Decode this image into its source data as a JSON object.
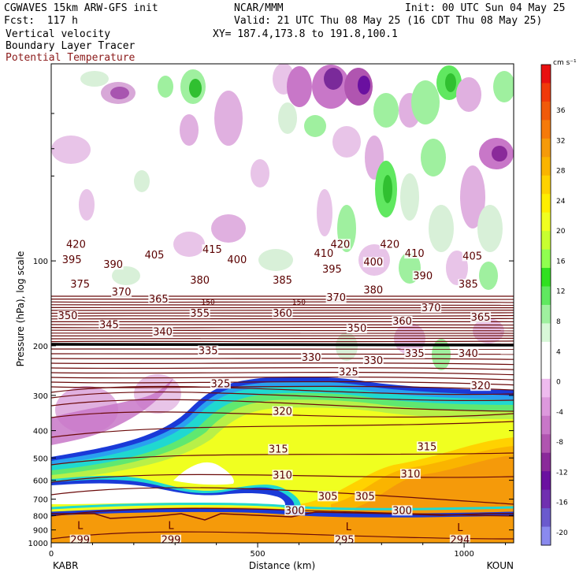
{
  "header": {
    "model": "CGWAVES 15km ARW-GFS init",
    "org": "NCAR/MMM",
    "init": "Init: 00 UTC Sun 04 May 25",
    "fcst": "Fcst:  117 h",
    "valid": "Valid: 21 UTC Thu 08 May 25 (16 CDT Thu 08 May 25)",
    "xy": "XY= 187.4,173.8 to 191.8,100.1",
    "field1": "Vertical velocity",
    "field2": "Boundary Layer Tracer",
    "field3": "Potential Temperature"
  },
  "colors": {
    "theta": "#6b0a0a",
    "theta_text": "#8b1a1a"
  },
  "chart_data": {
    "type": "heatmap",
    "title": "",
    "xlabel": "Distance (km)",
    "ylabel": "Pressure (hPa), log scale",
    "xlim": [
      0,
      1120
    ],
    "ylim": [
      1000,
      20
    ],
    "yscale": "log",
    "x_ticks": [
      0,
      500,
      1000
    ],
    "y_ticks": [
      100,
      200,
      300,
      400,
      500,
      600,
      700,
      800,
      900,
      1000
    ],
    "y_tick_labels": [
      "100",
      "200",
      "300",
      "400",
      "500",
      "600",
      "700",
      "800",
      "900",
      "1000"
    ],
    "endpoints": {
      "left": "KABR",
      "right": "KOUN"
    },
    "colorbar": {
      "unit": "cm s⁻¹",
      "labels": [
        36,
        32,
        28,
        24,
        20,
        16,
        12,
        8,
        4,
        0,
        -4,
        -8,
        -12,
        -16,
        -20
      ],
      "colors": [
        "#e81010",
        "#f03a0a",
        "#f05a0a",
        "#f57a0a",
        "#f59a0a",
        "#fab400",
        "#ffd200",
        "#ffee00",
        "#f0ff20",
        "#c8ff30",
        "#90ff50",
        "#30e020",
        "#60e860",
        "#9ff09f",
        "#d8f8d8",
        "#ffffff",
        "#ffffff",
        "#eebbee",
        "#dd99dd",
        "#c877c8",
        "#b055b0",
        "#8a2a9a",
        "#6a10a0",
        "#7030b0",
        "#6a5acd",
        "#8a8aee"
      ]
    },
    "theta_labels": [
      {
        "x": 60,
        "p": 88,
        "value": "420"
      },
      {
        "x": 50,
        "p": 100,
        "value": "395"
      },
      {
        "x": 150,
        "p": 104,
        "value": "390"
      },
      {
        "x": 250,
        "p": 96,
        "value": "405"
      },
      {
        "x": 390,
        "p": 92,
        "value": "415"
      },
      {
        "x": 450,
        "p": 100,
        "value": "400"
      },
      {
        "x": 700,
        "p": 88,
        "value": "420"
      },
      {
        "x": 820,
        "p": 88,
        "value": "420"
      },
      {
        "x": 660,
        "p": 95,
        "value": "410"
      },
      {
        "x": 880,
        "p": 95,
        "value": "410"
      },
      {
        "x": 1020,
        "p": 97,
        "value": "405"
      },
      {
        "x": 780,
        "p": 102,
        "value": "400"
      },
      {
        "x": 680,
        "p": 108,
        "value": "395"
      },
      {
        "x": 900,
        "p": 114,
        "value": "390"
      },
      {
        "x": 1010,
        "p": 122,
        "value": "385"
      },
      {
        "x": 560,
        "p": 118,
        "value": "385"
      },
      {
        "x": 360,
        "p": 118,
        "value": "380"
      },
      {
        "x": 780,
        "p": 128,
        "value": "380"
      },
      {
        "x": 70,
        "p": 122,
        "value": "375"
      },
      {
        "x": 170,
        "p": 130,
        "value": "370"
      },
      {
        "x": 690,
        "p": 136,
        "value": "370"
      },
      {
        "x": 920,
        "p": 148,
        "value": "370"
      },
      {
        "x": 260,
        "p": 138,
        "value": "365"
      },
      {
        "x": 1040,
        "p": 160,
        "value": "365"
      },
      {
        "x": 360,
        "p": 155,
        "value": "355"
      },
      {
        "x": 560,
        "p": 155,
        "value": "360"
      },
      {
        "x": 850,
        "p": 165,
        "value": "360"
      },
      {
        "x": 40,
        "p": 158,
        "value": "350"
      },
      {
        "x": 740,
        "p": 175,
        "value": "350"
      },
      {
        "x": 140,
        "p": 170,
        "value": "345"
      },
      {
        "x": 270,
        "p": 180,
        "value": "340"
      },
      {
        "x": 1010,
        "p": 215,
        "value": "340"
      },
      {
        "x": 380,
        "p": 210,
        "value": "335"
      },
      {
        "x": 880,
        "p": 215,
        "value": "335"
      },
      {
        "x": 630,
        "p": 222,
        "value": "330"
      },
      {
        "x": 780,
        "p": 228,
        "value": "330"
      },
      {
        "x": 410,
        "p": 275,
        "value": "325"
      },
      {
        "x": 720,
        "p": 250,
        "value": "325"
      },
      {
        "x": 1040,
        "p": 280,
        "value": "320"
      },
      {
        "x": 560,
        "p": 345,
        "value": "320"
      },
      {
        "x": 550,
        "p": 470,
        "value": "315"
      },
      {
        "x": 910,
        "p": 460,
        "value": "315"
      },
      {
        "x": 560,
        "p": 580,
        "value": "310"
      },
      {
        "x": 870,
        "p": 575,
        "value": "310"
      },
      {
        "x": 670,
        "p": 690,
        "value": "305"
      },
      {
        "x": 760,
        "p": 690,
        "value": "305"
      },
      {
        "x": 590,
        "p": 775,
        "value": "300"
      },
      {
        "x": 850,
        "p": 775,
        "value": "300"
      },
      {
        "x": 70,
        "p": 985,
        "value": "299"
      },
      {
        "x": 290,
        "p": 985,
        "value": "299"
      },
      {
        "x": 710,
        "p": 985,
        "value": "295"
      },
      {
        "x": 990,
        "p": 985,
        "value": "294"
      }
    ],
    "tropopause_labels": [
      {
        "x": 380,
        "p": 140,
        "value": "150"
      },
      {
        "x": 600,
        "p": 140,
        "value": "150"
      }
    ],
    "L_labels": [
      {
        "x": 70,
        "p": 870,
        "value": "L"
      },
      {
        "x": 290,
        "p": 870,
        "value": "L"
      },
      {
        "x": 720,
        "p": 880,
        "value": "L"
      },
      {
        "x": 990,
        "p": 885,
        "value": "L"
      }
    ]
  }
}
